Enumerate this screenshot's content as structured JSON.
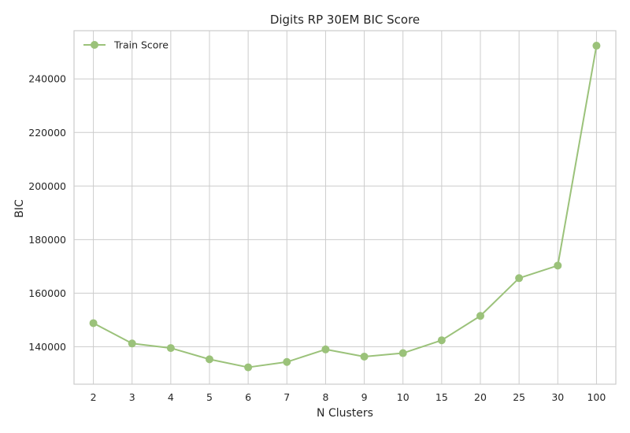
{
  "chart_data": {
    "type": "line",
    "title": "Digits RP 30EM BIC Score",
    "xlabel": "N Clusters",
    "ylabel": "BIC",
    "categories": [
      "2",
      "3",
      "4",
      "5",
      "6",
      "7",
      "8",
      "9",
      "10",
      "15",
      "20",
      "25",
      "30",
      "100"
    ],
    "series": [
      {
        "name": "Train Score",
        "color": "#9bc27a",
        "values": [
          148800,
          141200,
          139500,
          135300,
          132300,
          134300,
          139000,
          136300,
          137600,
          142400,
          151500,
          165600,
          170300,
          252400
        ]
      }
    ],
    "yticks": [
      140000,
      160000,
      180000,
      200000,
      220000,
      240000
    ],
    "ylim": [
      126000,
      258000
    ],
    "grid": true,
    "legend_position": "top-left"
  }
}
